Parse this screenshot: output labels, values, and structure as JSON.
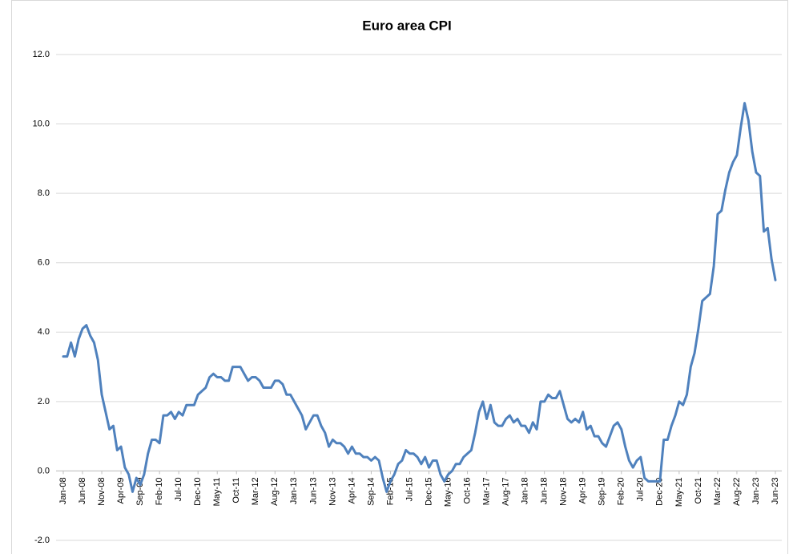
{
  "chart_data": {
    "type": "line",
    "title": "Euro area CPI",
    "categories": [
      "Jan-08",
      null,
      null,
      null,
      null,
      "Jun-08",
      null,
      null,
      null,
      null,
      "Nov-08",
      null,
      null,
      null,
      null,
      "Apr-09",
      null,
      null,
      null,
      null,
      "Sep-09",
      null,
      null,
      null,
      null,
      "Feb-10",
      null,
      null,
      null,
      null,
      "Jul-10",
      null,
      null,
      null,
      null,
      "Dec-10",
      null,
      null,
      null,
      null,
      "May-11",
      null,
      null,
      null,
      null,
      "Oct-11",
      null,
      null,
      null,
      null,
      "Mar-12",
      null,
      null,
      null,
      null,
      "Aug-12",
      null,
      null,
      null,
      null,
      "Jan-13",
      null,
      null,
      null,
      null,
      "Jun-13",
      null,
      null,
      null,
      null,
      "Nov-13",
      null,
      null,
      null,
      null,
      "Apr-14",
      null,
      null,
      null,
      null,
      "Sep-14",
      null,
      null,
      null,
      null,
      "Feb-15",
      null,
      null,
      null,
      null,
      "Jul-15",
      null,
      null,
      null,
      null,
      "Dec-15",
      null,
      null,
      null,
      null,
      "May-16",
      null,
      null,
      null,
      null,
      "Oct-16",
      null,
      null,
      null,
      null,
      "Mar-17",
      null,
      null,
      null,
      null,
      "Aug-17",
      null,
      null,
      null,
      null,
      "Jan-18",
      null,
      null,
      null,
      null,
      "Jun-18",
      null,
      null,
      null,
      null,
      "Nov-18",
      null,
      null,
      null,
      null,
      "Apr-19",
      null,
      null,
      null,
      null,
      "Sep-19",
      null,
      null,
      null,
      null,
      "Feb-20",
      null,
      null,
      null,
      null,
      "Jul-20",
      null,
      null,
      null,
      null,
      "Dec-20",
      null,
      null,
      null,
      null,
      "May-21",
      null,
      null,
      null,
      null,
      "Oct-21",
      null,
      null,
      null,
      null,
      "Mar-22",
      null,
      null,
      null,
      null,
      "Aug-22",
      null,
      null,
      null,
      null,
      "Jan-23",
      null,
      null,
      null,
      null,
      "Jun-23"
    ],
    "series": [
      {
        "name": "Euro area CPI",
        "color": "#4f81bd",
        "values": [
          3.3,
          3.3,
          3.7,
          3.3,
          3.8,
          4.1,
          4.2,
          3.9,
          3.7,
          3.2,
          2.2,
          1.7,
          1.2,
          1.3,
          0.6,
          0.7,
          0.1,
          -0.1,
          -0.6,
          -0.2,
          -0.4,
          -0.1,
          0.5,
          0.9,
          0.9,
          0.8,
          1.6,
          1.6,
          1.7,
          1.5,
          1.7,
          1.6,
          1.9,
          1.9,
          1.9,
          2.2,
          2.3,
          2.4,
          2.7,
          2.8,
          2.7,
          2.7,
          2.6,
          2.6,
          3.0,
          3.0,
          3.0,
          2.8,
          2.6,
          2.7,
          2.7,
          2.6,
          2.4,
          2.4,
          2.4,
          2.6,
          2.6,
          2.5,
          2.2,
          2.2,
          2.0,
          1.8,
          1.6,
          1.2,
          1.4,
          1.6,
          1.6,
          1.3,
          1.1,
          0.7,
          0.9,
          0.8,
          0.8,
          0.7,
          0.5,
          0.7,
          0.5,
          0.5,
          0.4,
          0.4,
          0.3,
          0.4,
          0.3,
          -0.2,
          -0.6,
          -0.3,
          -0.1,
          0.2,
          0.3,
          0.6,
          0.5,
          0.5,
          0.4,
          0.2,
          0.4,
          0.1,
          0.3,
          0.3,
          -0.1,
          -0.3,
          -0.1,
          0.0,
          0.2,
          0.2,
          0.4,
          0.5,
          0.6,
          1.1,
          1.7,
          2.0,
          1.5,
          1.9,
          1.4,
          1.3,
          1.3,
          1.5,
          1.6,
          1.4,
          1.5,
          1.3,
          1.3,
          1.1,
          1.4,
          1.2,
          2.0,
          2.0,
          2.2,
          2.1,
          2.1,
          2.3,
          1.9,
          1.5,
          1.4,
          1.5,
          1.4,
          1.7,
          1.2,
          1.3,
          1.0,
          1.0,
          0.8,
          0.7,
          1.0,
          1.3,
          1.4,
          1.2,
          0.7,
          0.3,
          0.1,
          0.3,
          0.4,
          -0.2,
          -0.3,
          -0.3,
          -0.3,
          -0.3,
          0.9,
          0.9,
          1.3,
          1.6,
          2.0,
          1.9,
          2.2,
          3.0,
          3.4,
          4.1,
          4.9,
          5.0,
          5.1,
          5.9,
          7.4,
          7.5,
          8.1,
          8.6,
          8.9,
          9.1,
          9.9,
          10.6,
          10.1,
          9.2,
          8.6,
          8.5,
          6.9,
          7.0,
          6.1,
          5.5
        ]
      }
    ],
    "ylim": [
      -2,
      12
    ],
    "yticks": [
      {
        "value": -2,
        "label": "-2.0"
      },
      {
        "value": 0,
        "label": "0.0"
      },
      {
        "value": 2,
        "label": "2.0"
      },
      {
        "value": 4,
        "label": "4.0"
      },
      {
        "value": 6,
        "label": "6.0"
      },
      {
        "value": 8,
        "label": "8.0"
      },
      {
        "value": 10,
        "label": "10.0"
      },
      {
        "value": 12,
        "label": "12.0"
      }
    ],
    "grid": true
  }
}
